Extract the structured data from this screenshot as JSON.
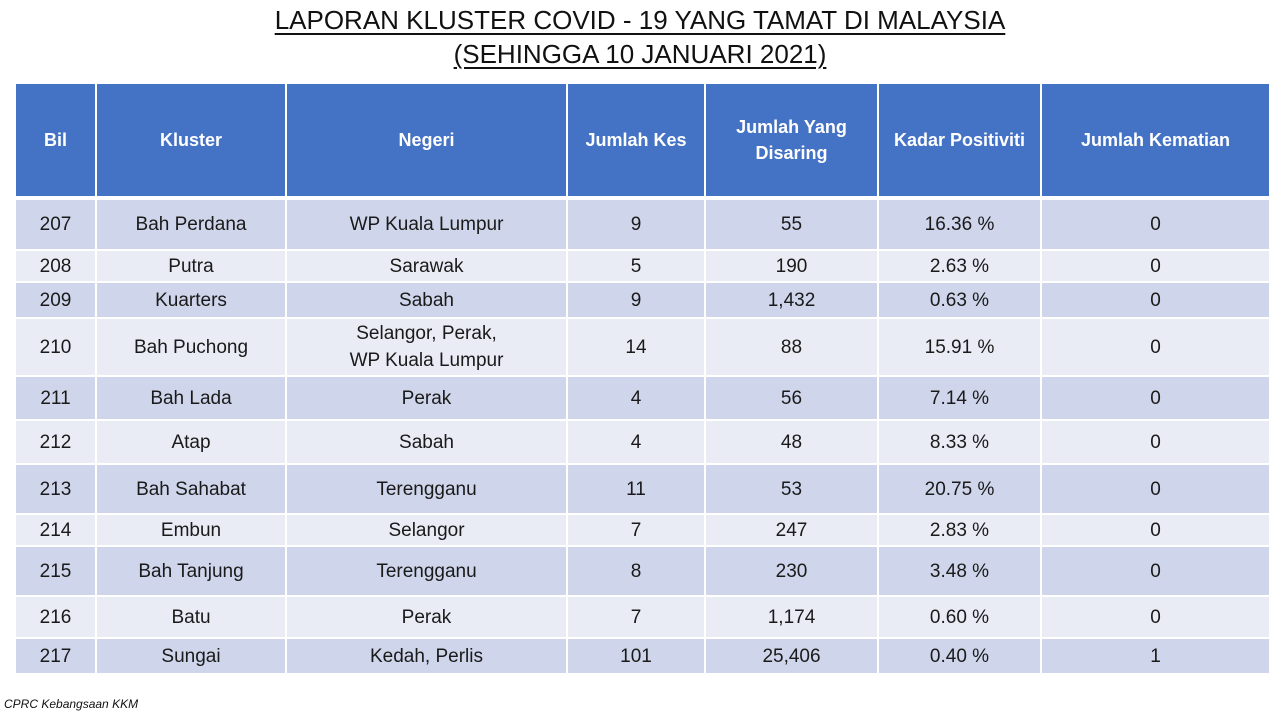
{
  "title_line1": "LAPORAN KLUSTER COVID - 19 YANG TAMAT DI MALAYSIA",
  "title_line2": "(SEHINGGA 10 JANUARI 2021)",
  "headers": {
    "bil": "Bil",
    "kluster": "Kluster",
    "negeri": "Negeri",
    "jumlah_kes": "Jumlah Kes",
    "disaring_1": "Jumlah Yang",
    "disaring_2": "Disaring",
    "kadar": "Kadar Positiviti",
    "kematian": "Jumlah Kematian"
  },
  "rows": [
    {
      "bil": "207",
      "kluster": "Bah Perdana",
      "negeri": "WP Kuala Lumpur",
      "negeri2": "",
      "kes": "9",
      "disaring": "55",
      "kadar": "16.36 %",
      "kematian": "0"
    },
    {
      "bil": "208",
      "kluster": "Putra",
      "negeri": "Sarawak",
      "negeri2": "",
      "kes": "5",
      "disaring": "190",
      "kadar": "2.63 %",
      "kematian": "0"
    },
    {
      "bil": "209",
      "kluster": "Kuarters",
      "negeri": "Sabah",
      "negeri2": "",
      "kes": "9",
      "disaring": "1,432",
      "kadar": "0.63 %",
      "kematian": "0"
    },
    {
      "bil": "210",
      "kluster": "Bah Puchong",
      "negeri": "Selangor, Perak,",
      "negeri2": "WP Kuala Lumpur",
      "kes": "14",
      "disaring": "88",
      "kadar": "15.91 %",
      "kematian": "0"
    },
    {
      "bil": "211",
      "kluster": "Bah Lada",
      "negeri": "Perak",
      "negeri2": "",
      "kes": "4",
      "disaring": "56",
      "kadar": "7.14 %",
      "kematian": "0"
    },
    {
      "bil": "212",
      "kluster": "Atap",
      "negeri": "Sabah",
      "negeri2": "",
      "kes": "4",
      "disaring": "48",
      "kadar": "8.33 %",
      "kematian": "0"
    },
    {
      "bil": "213",
      "kluster": "Bah Sahabat",
      "negeri": "Terengganu",
      "negeri2": "",
      "kes": "11",
      "disaring": "53",
      "kadar": "20.75 %",
      "kematian": "0"
    },
    {
      "bil": "214",
      "kluster": "Embun",
      "negeri": "Selangor",
      "negeri2": "",
      "kes": "7",
      "disaring": "247",
      "kadar": "2.83 %",
      "kematian": "0"
    },
    {
      "bil": "215",
      "kluster": "Bah Tanjung",
      "negeri": "Terengganu",
      "negeri2": "",
      "kes": "8",
      "disaring": "230",
      "kadar": "3.48 %",
      "kematian": "0"
    },
    {
      "bil": "216",
      "kluster": "Batu",
      "negeri": "Perak",
      "negeri2": "",
      "kes": "7",
      "disaring": "1,174",
      "kadar": "0.60 %",
      "kematian": "0"
    },
    {
      "bil": "217",
      "kluster": "Sungai",
      "negeri": "Kedah, Perlis",
      "negeri2": "",
      "kes": "101",
      "disaring": "25,406",
      "kadar": "0.40 %",
      "kematian": "1"
    }
  ],
  "footer": "CPRC Kebangsaan KKM"
}
